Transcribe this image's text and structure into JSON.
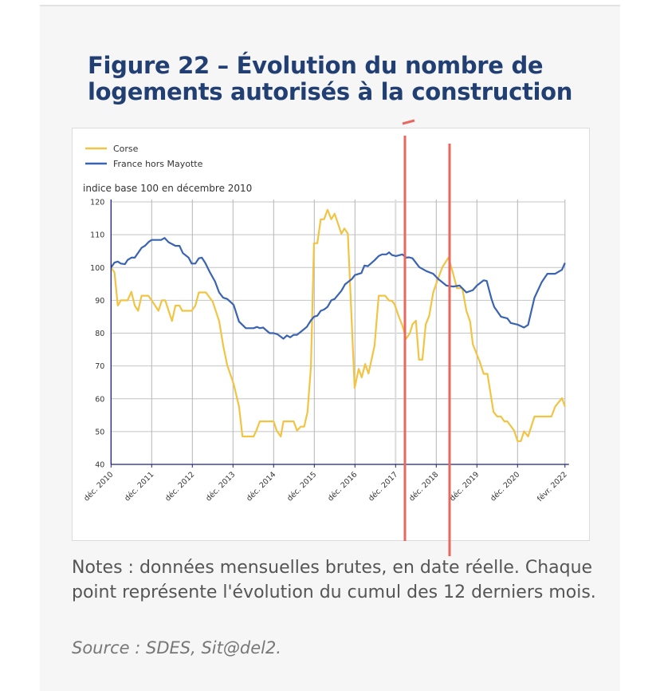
{
  "figure": {
    "title": "Figure 22 – Évolution du nombre de logements autorisés à la construction",
    "notes": "Notes : données mensuelles brutes, en date réelle. Chaque point représente l'évolution du cumul des 12 derniers mois.",
    "source": "Source : SDES, Sit@del2."
  },
  "chart_data": {
    "type": "line",
    "title": "",
    "ylabel": "indice base 100 en décembre 2010",
    "xlabel": "",
    "x_unit": "months since déc. 2010",
    "xlim": [
      0,
      134
    ],
    "ylim": [
      40,
      120
    ],
    "yticks": [
      40,
      50,
      60,
      70,
      80,
      90,
      100,
      110,
      120
    ],
    "xticks": [
      {
        "x": 0,
        "label": "déc. 2010"
      },
      {
        "x": 12,
        "label": "déc. 2011"
      },
      {
        "x": 24,
        "label": "déc. 2012"
      },
      {
        "x": 36,
        "label": "déc. 2013"
      },
      {
        "x": 48,
        "label": "déc. 2014"
      },
      {
        "x": 60,
        "label": "déc. 2015"
      },
      {
        "x": 72,
        "label": "déc. 2016"
      },
      {
        "x": 84,
        "label": "déc. 2017"
      },
      {
        "x": 96,
        "label": "déc. 2018"
      },
      {
        "x": 108,
        "label": "déc. 2019"
      },
      {
        "x": 120,
        "label": "déc. 2020"
      },
      {
        "x": 134,
        "label": "févr. 2022"
      }
    ],
    "grid": true,
    "legend_position": "top-left",
    "series": [
      {
        "name": "Corse",
        "color": "#f2c443",
        "points": [
          [
            0,
            100
          ],
          [
            1,
            98.5
          ],
          [
            2,
            88.4
          ],
          [
            2.9,
            90
          ],
          [
            4.9,
            90
          ],
          [
            6,
            92.6
          ],
          [
            7,
            88.4
          ],
          [
            8,
            86.8
          ],
          [
            9,
            91.4
          ],
          [
            11,
            91.4
          ],
          [
            12,
            90
          ],
          [
            14,
            86.8
          ],
          [
            15,
            90
          ],
          [
            16,
            90
          ],
          [
            18,
            83.7
          ],
          [
            19,
            88.4
          ],
          [
            20.2,
            88.4
          ],
          [
            21,
            86.8
          ],
          [
            23.8,
            86.8
          ],
          [
            24.9,
            88.4
          ],
          [
            25.9,
            92.4
          ],
          [
            28,
            92.4
          ],
          [
            30,
            89.6
          ],
          [
            31.9,
            83.7
          ],
          [
            33.1,
            76.2
          ],
          [
            34.3,
            70.2
          ],
          [
            36.2,
            64.5
          ],
          [
            37.8,
            57.6
          ],
          [
            38.8,
            48.5
          ],
          [
            42.1,
            48.5
          ],
          [
            42.9,
            50.3
          ],
          [
            43.9,
            53.1
          ],
          [
            48,
            53.1
          ],
          [
            48.9,
            50.3
          ],
          [
            50.1,
            48.5
          ],
          [
            50.9,
            53.1
          ],
          [
            53.9,
            53.1
          ],
          [
            54.9,
            50.3
          ],
          [
            56,
            51.5
          ],
          [
            57,
            51.5
          ],
          [
            58,
            56
          ],
          [
            59,
            69.8
          ],
          [
            59.9,
            107.4
          ],
          [
            60.9,
            107.4
          ],
          [
            61.9,
            114.7
          ],
          [
            62.9,
            114.7
          ],
          [
            63.9,
            117.6
          ],
          [
            65,
            114.7
          ],
          [
            66,
            116.4
          ],
          [
            68,
            110.3
          ],
          [
            68.9,
            111.9
          ],
          [
            69.9,
            110.3
          ],
          [
            71.9,
            63.3
          ],
          [
            73.1,
            69.1
          ],
          [
            74,
            66.5
          ],
          [
            75,
            70.6
          ],
          [
            76,
            67.7
          ],
          [
            77.8,
            76.2
          ],
          [
            79,
            91.4
          ],
          [
            80.9,
            91.4
          ],
          [
            82.1,
            89.9
          ],
          [
            82.9,
            89.9
          ],
          [
            83.7,
            88.8
          ],
          [
            84.9,
            85.2
          ],
          [
            86,
            82.3
          ],
          [
            87.1,
            78.3
          ],
          [
            88.2,
            79.9
          ],
          [
            89,
            82.7
          ],
          [
            90,
            83.8
          ],
          [
            90.9,
            71.9
          ],
          [
            91.9,
            71.9
          ],
          [
            92.9,
            82.7
          ],
          [
            93.9,
            85.2
          ],
          [
            95.1,
            92.4
          ],
          [
            96.2,
            95.7
          ],
          [
            97.8,
            100.1
          ],
          [
            99.6,
            103
          ],
          [
            101,
            98.1
          ],
          [
            102.1,
            93.7
          ],
          [
            103.7,
            93.7
          ],
          [
            104.9,
            86.8
          ],
          [
            106,
            83.5
          ],
          [
            106.8,
            76.6
          ],
          [
            108.8,
            71.4
          ],
          [
            110,
            67.6
          ],
          [
            111.1,
            67.6
          ],
          [
            112.9,
            56
          ],
          [
            114,
            54.6
          ],
          [
            115.1,
            54.6
          ],
          [
            116.1,
            53.1
          ],
          [
            117,
            53.1
          ],
          [
            119,
            50.3
          ],
          [
            120,
            47.1
          ],
          [
            121,
            47.1
          ],
          [
            121.9,
            50.1
          ],
          [
            123.1,
            48.5
          ],
          [
            125,
            54.6
          ],
          [
            130,
            54.6
          ],
          [
            131.1,
            57.6
          ],
          [
            133.1,
            60.2
          ],
          [
            134,
            57.6
          ]
        ]
      },
      {
        "name": "France hors Mayotte",
        "color": "#3a63b1",
        "points": [
          [
            0,
            100
          ],
          [
            1,
            101.5
          ],
          [
            2,
            101.8
          ],
          [
            2.9,
            101.2
          ],
          [
            4.1,
            101
          ],
          [
            4.9,
            102.3
          ],
          [
            6,
            103
          ],
          [
            7,
            103
          ],
          [
            9,
            106
          ],
          [
            10,
            106.6
          ],
          [
            11.1,
            107.8
          ],
          [
            12,
            108.4
          ],
          [
            14.8,
            108.4
          ],
          [
            15.8,
            109
          ],
          [
            17,
            107.7
          ],
          [
            19,
            106.6
          ],
          [
            20.2,
            106.6
          ],
          [
            21.2,
            104.4
          ],
          [
            22.9,
            103
          ],
          [
            23.8,
            101.2
          ],
          [
            24.9,
            101.2
          ],
          [
            25.9,
            102.8
          ],
          [
            26.8,
            103
          ],
          [
            27.8,
            101.4
          ],
          [
            29.2,
            98.5
          ],
          [
            30.7,
            95.7
          ],
          [
            31.9,
            92.4
          ],
          [
            33.1,
            90.8
          ],
          [
            34.3,
            90.4
          ],
          [
            36.2,
            88.6
          ],
          [
            37.8,
            83.5
          ],
          [
            39.8,
            81.5
          ],
          [
            42.1,
            81.5
          ],
          [
            43.1,
            81.9
          ],
          [
            43.9,
            81.5
          ],
          [
            44.9,
            81.7
          ],
          [
            46.8,
            80
          ],
          [
            48,
            80
          ],
          [
            49.2,
            79.6
          ],
          [
            50.9,
            78.3
          ],
          [
            51.9,
            79.3
          ],
          [
            52.9,
            78.7
          ],
          [
            53.9,
            79.5
          ],
          [
            54.9,
            79.5
          ],
          [
            56,
            80.4
          ],
          [
            57.8,
            81.9
          ],
          [
            59,
            83.9
          ],
          [
            59.9,
            85
          ],
          [
            60.9,
            85.3
          ],
          [
            61.9,
            86.8
          ],
          [
            62.9,
            87.2
          ],
          [
            63.9,
            88
          ],
          [
            65,
            90
          ],
          [
            66,
            90.4
          ],
          [
            68,
            92.9
          ],
          [
            69.1,
            94.9
          ],
          [
            71.1,
            96.5
          ],
          [
            72,
            97.7
          ],
          [
            73.9,
            98.3
          ],
          [
            74.8,
            100.6
          ],
          [
            75.8,
            100.4
          ],
          [
            77.8,
            102.2
          ],
          [
            79,
            103.5
          ],
          [
            80,
            104
          ],
          [
            81.3,
            104
          ],
          [
            82.1,
            104.6
          ],
          [
            82.9,
            103.8
          ],
          [
            84.1,
            103.5
          ],
          [
            86,
            104
          ],
          [
            87.1,
            103
          ],
          [
            88,
            103.1
          ],
          [
            89,
            102.8
          ],
          [
            91,
            100.1
          ],
          [
            93.1,
            98.9
          ],
          [
            95.1,
            98.1
          ],
          [
            96.6,
            96.5
          ],
          [
            99,
            94.5
          ],
          [
            101,
            94.2
          ],
          [
            102.9,
            94.5
          ],
          [
            104.9,
            92.4
          ],
          [
            106.8,
            93.1
          ],
          [
            108,
            94.5
          ],
          [
            110,
            96.1
          ],
          [
            110.9,
            95.9
          ],
          [
            112.3,
            90.4
          ],
          [
            113.1,
            88
          ],
          [
            115.1,
            85
          ],
          [
            117,
            84.5
          ],
          [
            118,
            83.1
          ],
          [
            120,
            82.6
          ],
          [
            121.9,
            81.7
          ],
          [
            123.1,
            82.5
          ],
          [
            125,
            90.8
          ],
          [
            127.1,
            95.5
          ],
          [
            128.8,
            98.1
          ],
          [
            131.1,
            98.1
          ],
          [
            133.1,
            99.3
          ],
          [
            134,
            101.4
          ]
        ]
      }
    ]
  }
}
